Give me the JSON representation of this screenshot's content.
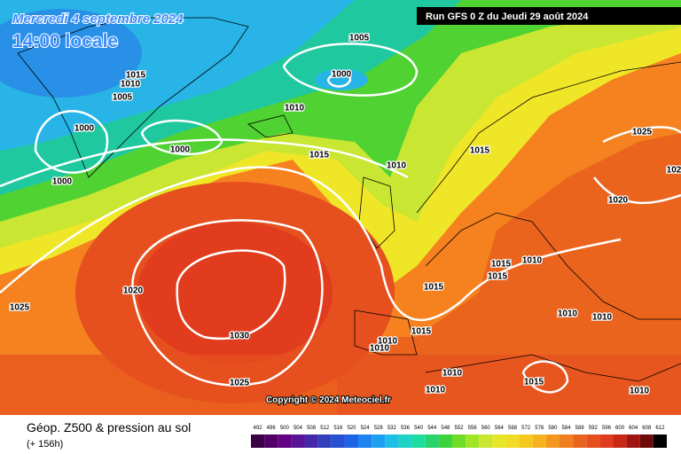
{
  "header": {
    "date": "Mercredi 4 septembre 2024",
    "time": "14:00 locale",
    "run": "Run GFS 0 Z du Jeudi 29 août 2024"
  },
  "copyright": "Copyright © 2024 Meteociel.fr",
  "footer": {
    "title": "Géop. Z500 & pression au sol",
    "lead": "(+ 156h)"
  },
  "isobar_labels": [
    "1005",
    "1000",
    "1015",
    "1010",
    "1005",
    "1000",
    "1010",
    "1000",
    "1000",
    "1015",
    "1010",
    "1015",
    "1025",
    "102",
    "1020",
    "1015",
    "1010",
    "1015",
    "1015",
    "1020",
    "1025",
    "1010",
    "1010",
    "1015",
    "1030",
    "1010",
    "1010",
    "1010",
    "1015",
    "1025",
    "1010",
    "1010"
  ],
  "legend": {
    "ticks": [
      492,
      496,
      500,
      504,
      508,
      512,
      516,
      520,
      524,
      528,
      532,
      536,
      540,
      544,
      548,
      552,
      556,
      560,
      564,
      568,
      572,
      576,
      580,
      584,
      588,
      592,
      596,
      600,
      604,
      608,
      612
    ],
    "colors": [
      "#3c0046",
      "#500064",
      "#640082",
      "#5a1496",
      "#4628aa",
      "#3240be",
      "#2850d2",
      "#1e64e6",
      "#1e82f0",
      "#1ea0f0",
      "#1ebee6",
      "#1ed2c8",
      "#1edca0",
      "#28d26e",
      "#3cd23c",
      "#6edc28",
      "#a0e628",
      "#c8e632",
      "#e6e628",
      "#f0dc28",
      "#f5c81e",
      "#f5b41e",
      "#f5961e",
      "#f07d1e",
      "#eb641e",
      "#e6501e",
      "#e13c1e",
      "#c82814",
      "#a01414",
      "#6e0a0a",
      "#000000"
    ]
  }
}
